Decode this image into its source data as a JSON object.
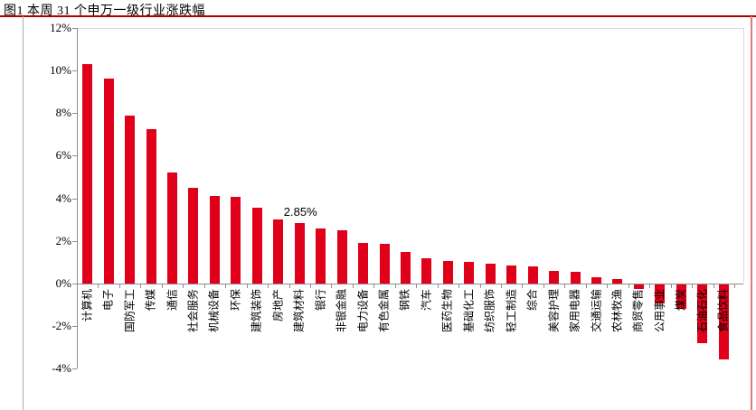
{
  "header": {
    "title": "图1 本周 31 个申万一级行业涨跌幅"
  },
  "colors": {
    "bar": "#e00019",
    "title_underline": "#b00000",
    "right_border": "#e07a7a",
    "left_border": "#ababab",
    "axis": "#8c8c8c",
    "plot_border": "#d9d9d9"
  },
  "chart_data": {
    "type": "bar",
    "title": "图1 本周 31 个申万一级行业涨跌幅",
    "xlabel": "",
    "ylabel": "",
    "ylim": [
      -4,
      12
    ],
    "ytick_step": 2,
    "ytick_labels": [
      "12%",
      "10%",
      "8%",
      "6%",
      "4%",
      "2%",
      "0%",
      "-2%",
      "-4%"
    ],
    "grid": false,
    "legend": "none",
    "bar_color": "#e00019",
    "categories": [
      "计算机",
      "电子",
      "国防军工",
      "传媒",
      "通信",
      "社会服务",
      "机械设备",
      "环保",
      "建筑装饰",
      "房地产",
      "建筑材料",
      "银行",
      "非银金融",
      "电力设备",
      "有色金属",
      "钢铁",
      "汽车",
      "医药生物",
      "基础化工",
      "纺织服饰",
      "轻工制造",
      "综合",
      "美容护理",
      "家用电器",
      "交通运输",
      "农林牧渔",
      "商贸零售",
      "公用事业",
      "煤炭",
      "石油石化",
      "食品饮料"
    ],
    "values": [
      10.3,
      9.6,
      7.9,
      7.25,
      5.2,
      4.5,
      4.1,
      4.05,
      3.55,
      3.0,
      2.85,
      2.6,
      2.5,
      1.9,
      1.85,
      1.5,
      1.2,
      1.05,
      1.0,
      0.95,
      0.85,
      0.8,
      0.6,
      0.55,
      0.3,
      0.2,
      -0.2,
      -0.9,
      -1.15,
      -2.75,
      -3.5
    ],
    "annotation": {
      "index": 10,
      "category": "建筑材料",
      "text": "2.85%"
    }
  }
}
